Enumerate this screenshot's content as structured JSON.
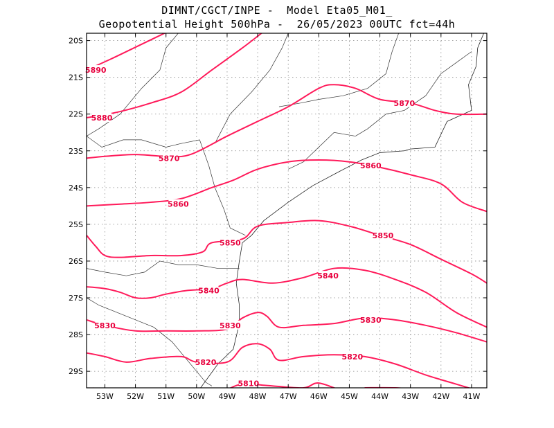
{
  "title": {
    "line1": "DIMNT/CGCT/INPE -  Model Eta05_M01_",
    "line2": "Geopotential Height 500hPa -  26/05/2023 00UTC fct=44h"
  },
  "colors": {
    "contour": "#ff1a5a",
    "label": "#e8003d",
    "grid": "#888888",
    "coast": "#222222"
  },
  "map": {
    "lon_range": [
      -53.6,
      -40.5
    ],
    "lat_range": [
      -29.45,
      -19.8
    ],
    "lat_labels": [
      "20S",
      "21S",
      "22S",
      "23S",
      "24S",
      "25S",
      "26S",
      "27S",
      "28S",
      "29S"
    ],
    "lon_labels": [
      "53W",
      "52W",
      "51W",
      "50W",
      "49W",
      "48W",
      "47W",
      "46W",
      "45W",
      "44W",
      "43W",
      "42W",
      "41W"
    ]
  },
  "contours": [
    {
      "value": 5890,
      "label": "5890",
      "points": [
        [
          -53.6,
          -20.8
        ],
        [
          -52.8,
          -20.5
        ],
        [
          -51.8,
          -20.1
        ],
        [
          -50.8,
          -19.7
        ]
      ]
    },
    {
      "value": 5880,
      "label": "5880",
      "points": [
        [
          -53.6,
          -22.1
        ],
        [
          -52.6,
          -21.95
        ],
        [
          -51.5,
          -21.7
        ],
        [
          -50.5,
          -21.4
        ],
        [
          -49.5,
          -20.8
        ],
        [
          -48.5,
          -20.2
        ],
        [
          -47.8,
          -19.75
        ]
      ]
    },
    {
      "value": 5870,
      "label": "5870",
      "points": [
        [
          -53.6,
          -23.2
        ],
        [
          -53.0,
          -23.15
        ],
        [
          -52.0,
          -23.1
        ],
        [
          -51.0,
          -23.15
        ],
        [
          -50.2,
          -23.1
        ],
        [
          -49.0,
          -22.6
        ],
        [
          -48.0,
          -22.2
        ],
        [
          -47.0,
          -21.8
        ],
        [
          -46.0,
          -21.3
        ],
        [
          -45.5,
          -21.2
        ],
        [
          -44.8,
          -21.3
        ],
        [
          -44.0,
          -21.6
        ],
        [
          -43.0,
          -21.7
        ],
        [
          -42.2,
          -21.9
        ],
        [
          -41.5,
          -22.0
        ],
        [
          -40.5,
          -22.0
        ]
      ]
    },
    {
      "value": 5860,
      "label": "5860",
      "points": [
        [
          -53.6,
          -24.5
        ],
        [
          -52.5,
          -24.45
        ],
        [
          -51.5,
          -24.4
        ],
        [
          -50.5,
          -24.3
        ],
        [
          -49.5,
          -24.0
        ],
        [
          -48.8,
          -23.8
        ],
        [
          -48.0,
          -23.5
        ],
        [
          -47.0,
          -23.3
        ],
        [
          -46.0,
          -23.25
        ],
        [
          -45.0,
          -23.3
        ],
        [
          -44.0,
          -23.45
        ],
        [
          -43.0,
          -23.65
        ],
        [
          -42.0,
          -23.9
        ],
        [
          -41.3,
          -24.4
        ],
        [
          -40.5,
          -24.65
        ]
      ]
    },
    {
      "value": 5850,
      "label": "5850",
      "points": [
        [
          -53.6,
          -25.3
        ],
        [
          -53.3,
          -25.6
        ],
        [
          -53.0,
          -25.85
        ],
        [
          -52.5,
          -25.9
        ],
        [
          -51.5,
          -25.85
        ],
        [
          -50.5,
          -25.85
        ],
        [
          -49.8,
          -25.75
        ],
        [
          -49.5,
          -25.5
        ],
        [
          -48.5,
          -25.4
        ],
        [
          -48.0,
          -25.05
        ],
        [
          -47.0,
          -24.95
        ],
        [
          -46.0,
          -24.9
        ],
        [
          -45.0,
          -25.05
        ],
        [
          -44.0,
          -25.3
        ],
        [
          -43.0,
          -25.55
        ],
        [
          -42.0,
          -25.95
        ],
        [
          -41.0,
          -26.35
        ],
        [
          -40.5,
          -26.6
        ]
      ]
    },
    {
      "value": 5840,
      "label": "5840",
      "points": [
        [
          -53.6,
          -26.7
        ],
        [
          -53.0,
          -26.75
        ],
        [
          -52.5,
          -26.85
        ],
        [
          -52.0,
          -27.0
        ],
        [
          -51.5,
          -27.0
        ],
        [
          -51.0,
          -26.9
        ],
        [
          -50.3,
          -26.8
        ],
        [
          -49.5,
          -26.75
        ],
        [
          -49.0,
          -26.6
        ],
        [
          -48.5,
          -26.5
        ],
        [
          -47.5,
          -26.6
        ],
        [
          -46.5,
          -26.45
        ],
        [
          -45.5,
          -26.2
        ],
        [
          -44.5,
          -26.25
        ],
        [
          -43.5,
          -26.5
        ],
        [
          -42.5,
          -26.85
        ],
        [
          -41.5,
          -27.4
        ],
        [
          -40.5,
          -27.8
        ]
      ]
    },
    {
      "value": 5830,
      "label": "5830",
      "points": [
        [
          -53.6,
          -27.6
        ],
        [
          -53.0,
          -27.75
        ],
        [
          -52.0,
          -27.9
        ],
        [
          -51.0,
          -27.9
        ],
        [
          -50.0,
          -27.9
        ],
        [
          -49.0,
          -27.85
        ],
        [
          -48.5,
          -27.55
        ],
        [
          -48.0,
          -27.4
        ],
        [
          -47.7,
          -27.5
        ],
        [
          -47.3,
          -27.8
        ],
        [
          -46.5,
          -27.75
        ],
        [
          -45.5,
          -27.7
        ],
        [
          -44.5,
          -27.55
        ],
        [
          -43.5,
          -27.6
        ],
        [
          -42.5,
          -27.75
        ],
        [
          -41.5,
          -27.95
        ],
        [
          -40.5,
          -28.2
        ]
      ]
    },
    {
      "value": 5820,
      "label": "5820",
      "points": [
        [
          -53.6,
          -28.5
        ],
        [
          -53.0,
          -28.6
        ],
        [
          -52.3,
          -28.75
        ],
        [
          -51.5,
          -28.65
        ],
        [
          -50.5,
          -28.6
        ],
        [
          -50.0,
          -28.75
        ],
        [
          -49.0,
          -28.75
        ],
        [
          -48.5,
          -28.35
        ],
        [
          -48.0,
          -28.25
        ],
        [
          -47.6,
          -28.4
        ],
        [
          -47.3,
          -28.7
        ],
        [
          -46.5,
          -28.6
        ],
        [
          -45.5,
          -28.55
        ],
        [
          -44.5,
          -28.6
        ],
        [
          -43.5,
          -28.8
        ],
        [
          -42.5,
          -29.1
        ],
        [
          -41.5,
          -29.35
        ],
        [
          -40.5,
          -29.6
        ]
      ]
    },
    {
      "value": 5810,
      "label": "5810",
      "points": [
        [
          -53.4,
          -29.45
        ],
        [
          -53.2,
          -29.6
        ]
      ]
    },
    {
      "value": 5810,
      "label": "",
      "points": [
        [
          -49.0,
          -29.5
        ],
        [
          -48.5,
          -29.35
        ],
        [
          -47.5,
          -29.4
        ],
        [
          -46.5,
          -29.45
        ],
        [
          -46.0,
          -29.32
        ],
        [
          -45.2,
          -29.55
        ]
      ]
    },
    {
      "value": 5810,
      "label": "",
      "points": [
        [
          -44.5,
          -29.45
        ],
        [
          -43.5,
          -29.45
        ],
        [
          -42.8,
          -29.5
        ]
      ]
    }
  ],
  "contour_labels": [
    {
      "text": "5890",
      "lon": -53.3,
      "lat": -20.8
    },
    {
      "text": "5880",
      "lon": -53.1,
      "lat": -22.1
    },
    {
      "text": "5870",
      "lon": -50.9,
      "lat": -23.2
    },
    {
      "text": "5870",
      "lon": -43.2,
      "lat": -21.7
    },
    {
      "text": "5860",
      "lon": -50.6,
      "lat": -24.45
    },
    {
      "text": "5860",
      "lon": -44.3,
      "lat": -23.4
    },
    {
      "text": "5850",
      "lon": -48.9,
      "lat": -25.5
    },
    {
      "text": "5850",
      "lon": -43.9,
      "lat": -25.3
    },
    {
      "text": "5840",
      "lon": -49.6,
      "lat": -26.8
    },
    {
      "text": "5840",
      "lon": -45.7,
      "lat": -26.4
    },
    {
      "text": "5830",
      "lon": -53.0,
      "lat": -27.75
    },
    {
      "text": "5830",
      "lon": -48.9,
      "lat": -27.75
    },
    {
      "text": "5830",
      "lon": -44.3,
      "lat": -27.6
    },
    {
      "text": "5820",
      "lon": -49.7,
      "lat": -28.75
    },
    {
      "text": "5820",
      "lon": -44.9,
      "lat": -28.6
    },
    {
      "text": "5810",
      "lon": -48.3,
      "lat": -29.33
    }
  ],
  "coastline": [
    [
      -40.5,
      -19.6
    ],
    [
      -40.8,
      -20.2
    ],
    [
      -40.85,
      -20.7
    ],
    [
      -41.1,
      -21.2
    ],
    [
      -41.0,
      -21.9
    ],
    [
      -41.8,
      -22.2
    ],
    [
      -42.2,
      -22.9
    ],
    [
      -43.0,
      -22.95
    ],
    [
      -43.2,
      -23.0
    ],
    [
      -44.0,
      -23.05
    ],
    [
      -44.6,
      -23.25
    ],
    [
      -45.3,
      -23.55
    ],
    [
      -46.2,
      -23.95
    ],
    [
      -47.0,
      -24.4
    ],
    [
      -47.8,
      -24.9
    ],
    [
      -48.2,
      -25.3
    ],
    [
      -48.5,
      -25.5
    ],
    [
      -48.6,
      -26.0
    ],
    [
      -48.7,
      -26.6
    ],
    [
      -48.6,
      -27.2
    ],
    [
      -48.6,
      -27.7
    ],
    [
      -48.8,
      -28.4
    ],
    [
      -49.3,
      -28.8
    ],
    [
      -50.0,
      -29.6
    ]
  ],
  "borders": [
    [
      [
        -53.6,
        -22.6
      ],
      [
        -53.2,
        -22.4
      ],
      [
        -52.5,
        -22.0
      ],
      [
        -51.8,
        -21.3
      ],
      [
        -51.2,
        -20.8
      ],
      [
        -51.0,
        -20.2
      ],
      [
        -50.6,
        -19.8
      ]
    ],
    [
      [
        -53.6,
        -22.6
      ],
      [
        -53.1,
        -22.9
      ],
      [
        -52.4,
        -22.7
      ],
      [
        -51.8,
        -22.7
      ],
      [
        -51.0,
        -22.9
      ],
      [
        -50.5,
        -22.8
      ],
      [
        -49.9,
        -22.7
      ],
      [
        -49.6,
        -23.4
      ],
      [
        -49.4,
        -24.0
      ],
      [
        -49.1,
        -24.6
      ],
      [
        -48.9,
        -25.1
      ],
      [
        -48.4,
        -25.3
      ]
    ],
    [
      [
        -53.6,
        -26.2
      ],
      [
        -53.0,
        -26.3
      ],
      [
        -52.3,
        -26.4
      ],
      [
        -51.7,
        -26.3
      ],
      [
        -51.2,
        -26.0
      ],
      [
        -50.6,
        -26.1
      ],
      [
        -50.0,
        -26.1
      ],
      [
        -49.3,
        -26.2
      ],
      [
        -48.6,
        -26.2
      ]
    ],
    [
      [
        -53.6,
        -27.0
      ],
      [
        -53.2,
        -27.2
      ],
      [
        -52.6,
        -27.4
      ],
      [
        -52.0,
        -27.6
      ],
      [
        -51.4,
        -27.8
      ],
      [
        -50.8,
        -28.2
      ],
      [
        -50.1,
        -28.9
      ],
      [
        -49.7,
        -29.3
      ],
      [
        -49.5,
        -29.4
      ]
    ],
    [
      [
        -44.8,
        -22.6
      ],
      [
        -44.4,
        -22.4
      ],
      [
        -43.8,
        -22.0
      ],
      [
        -43.2,
        -21.9
      ],
      [
        -42.5,
        -21.5
      ],
      [
        -42.0,
        -20.9
      ],
      [
        -41.5,
        -20.6
      ],
      [
        -41.0,
        -20.3
      ]
    ],
    [
      [
        -47.0,
        -23.5
      ],
      [
        -46.5,
        -23.3
      ],
      [
        -46.0,
        -22.9
      ],
      [
        -45.5,
        -22.5
      ],
      [
        -44.8,
        -22.6
      ]
    ],
    [
      [
        -49.4,
        -22.8
      ],
      [
        -48.9,
        -22.0
      ],
      [
        -48.2,
        -21.4
      ],
      [
        -47.6,
        -20.8
      ],
      [
        -47.2,
        -20.2
      ],
      [
        -47.0,
        -19.8
      ]
    ],
    [
      [
        -43.3,
        -19.6
      ],
      [
        -43.6,
        -20.3
      ],
      [
        -43.8,
        -20.9
      ],
      [
        -44.4,
        -21.3
      ],
      [
        -45.2,
        -21.5
      ],
      [
        -46.0,
        -21.6
      ],
      [
        -46.6,
        -21.7
      ],
      [
        -47.3,
        -21.8
      ]
    ]
  ]
}
